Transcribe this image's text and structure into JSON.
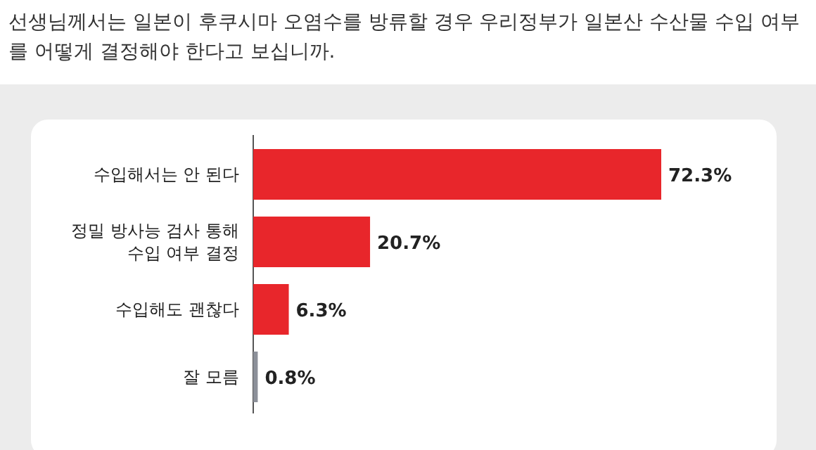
{
  "chart_data": {
    "type": "bar",
    "orientation": "horizontal",
    "title": "선생님께서는 일본이 후쿠시마 오염수를 방류할 경우 우리정부가 일본산 수산물 수입 여부를 어떻게 결정해야 한다고 보십니까.",
    "categories": [
      "수입해서는 안 된다",
      "정밀 방사능 검사 통해\n수입 여부 결정",
      "수입해도 괜찮다",
      "잘 모름"
    ],
    "values": [
      72.3,
      20.7,
      6.3,
      0.8
    ],
    "colors": [
      "#e8262b",
      "#e8262b",
      "#e8262b",
      "#8c9099"
    ],
    "value_labels": [
      "72.3%",
      "20.7%",
      "6.3%",
      "0.8%"
    ]
  }
}
